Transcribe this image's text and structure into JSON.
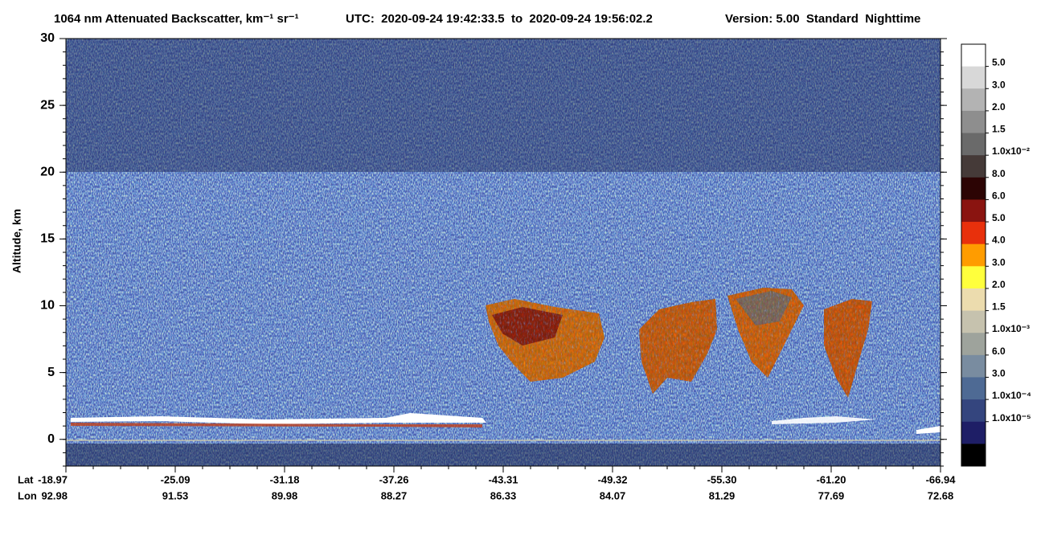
{
  "chart_data": {
    "type": "image",
    "title": "1064 nm Attenuated Backscatter, km⁻¹ sr⁻¹",
    "subtitle": "UTC:  2020-09-24 19:42:33.5  to  2020-09-24 19:56:02.2",
    "version": "Version: 5.00  Standard  Nighttime",
    "y_label": "Altitude, km",
    "ylim": [
      -2,
      30
    ],
    "yticks": [
      0,
      5,
      10,
      15,
      20,
      25,
      30
    ],
    "lat_label": "Lat",
    "lon_label": "Lon",
    "lat": [
      "-18.97",
      "-25.09",
      "-31.18",
      "-37.26",
      "-43.31",
      "-49.32",
      "-55.30",
      "-61.20",
      "-66.94"
    ],
    "lon": [
      "92.98",
      "91.53",
      "89.98",
      "88.27",
      "86.33",
      "84.07",
      "81.29",
      "77.69",
      "72.68"
    ],
    "colorbar": {
      "labels": [
        "5.0",
        "3.0",
        "2.0",
        "1.5",
        "1.0x10⁻²",
        "8.0",
        "6.0",
        "5.0",
        "4.0",
        "3.0",
        "2.0",
        "1.5",
        "1.0x10⁻³",
        "6.0",
        "3.0",
        "1.0x10⁻⁴",
        "1.0x10⁻⁵"
      ],
      "colors": [
        "#ffffff",
        "#d8d8d8",
        "#b3b3b3",
        "#8e8e8e",
        "#6a6a6a",
        "#453a38",
        "#2c0404",
        "#8a1410",
        "#e8300c",
        "#ff9c00",
        "#ffff3c",
        "#ecdcae",
        "#c6c2ae",
        "#9ea39c",
        "#798ca0",
        "#4e6a94",
        "#34457e",
        "#1e1e66",
        "#000000"
      ]
    }
  }
}
